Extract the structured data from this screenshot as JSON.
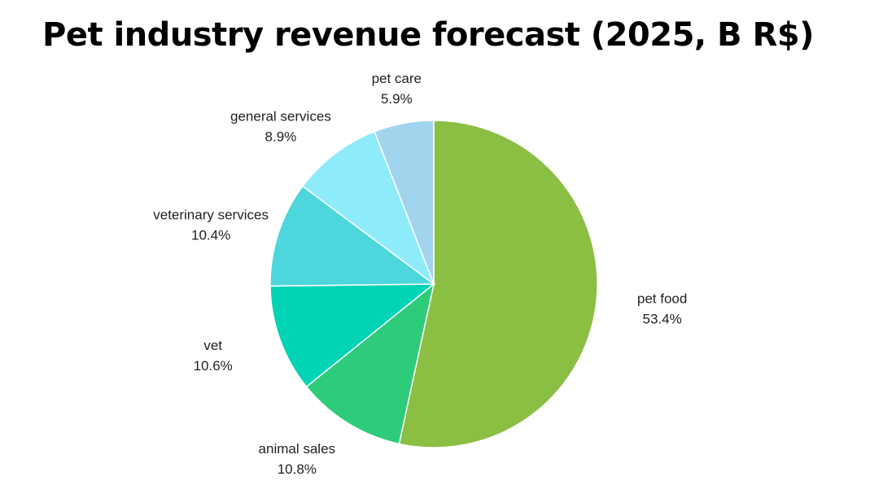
{
  "chart_data": {
    "type": "pie",
    "title": "Pet industry revenue forecast (2025, B R$)",
    "slices": [
      {
        "label": "pet food",
        "value": 53.4,
        "value_label": "53.4%",
        "color": "#8bbf44"
      },
      {
        "label": "animal sales",
        "value": 10.8,
        "value_label": "10.8%",
        "color": "#2ecc7a"
      },
      {
        "label": "vet",
        "value": 10.6,
        "value_label": "10.6%",
        "color": "#00d4b4"
      },
      {
        "label": "veterinary services",
        "value": 10.4,
        "value_label": "10.4%",
        "color": "#4dd6dc"
      },
      {
        "label": "general services",
        "value": 8.9,
        "value_label": "8.9%",
        "color": "#8eecfa"
      },
      {
        "label": "pet care",
        "value": 5.9,
        "value_label": "5.9%",
        "color": "#a2d4ee"
      }
    ],
    "start_angle": "12 o'clock",
    "direction": "clockwise",
    "legend": "none (inline labels)"
  }
}
